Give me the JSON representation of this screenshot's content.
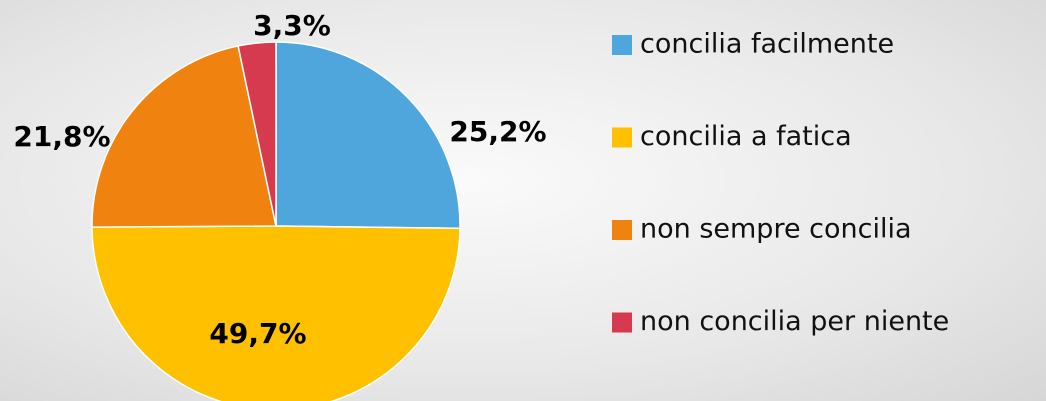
{
  "chart_data": {
    "type": "pie",
    "categories": [
      "concilia facilmente",
      "concilia a fatica",
      "non sempre concilia",
      "non concilia per niente"
    ],
    "values": [
      25.2,
      49.7,
      21.8,
      3.3
    ],
    "value_labels": [
      "25,2%",
      "49,7%",
      "21,8%",
      "3,3%"
    ],
    "colors": [
      "#4ea6dc",
      "#ffc000",
      "#f0820f",
      "#d63a4f"
    ],
    "legend": "right"
  }
}
